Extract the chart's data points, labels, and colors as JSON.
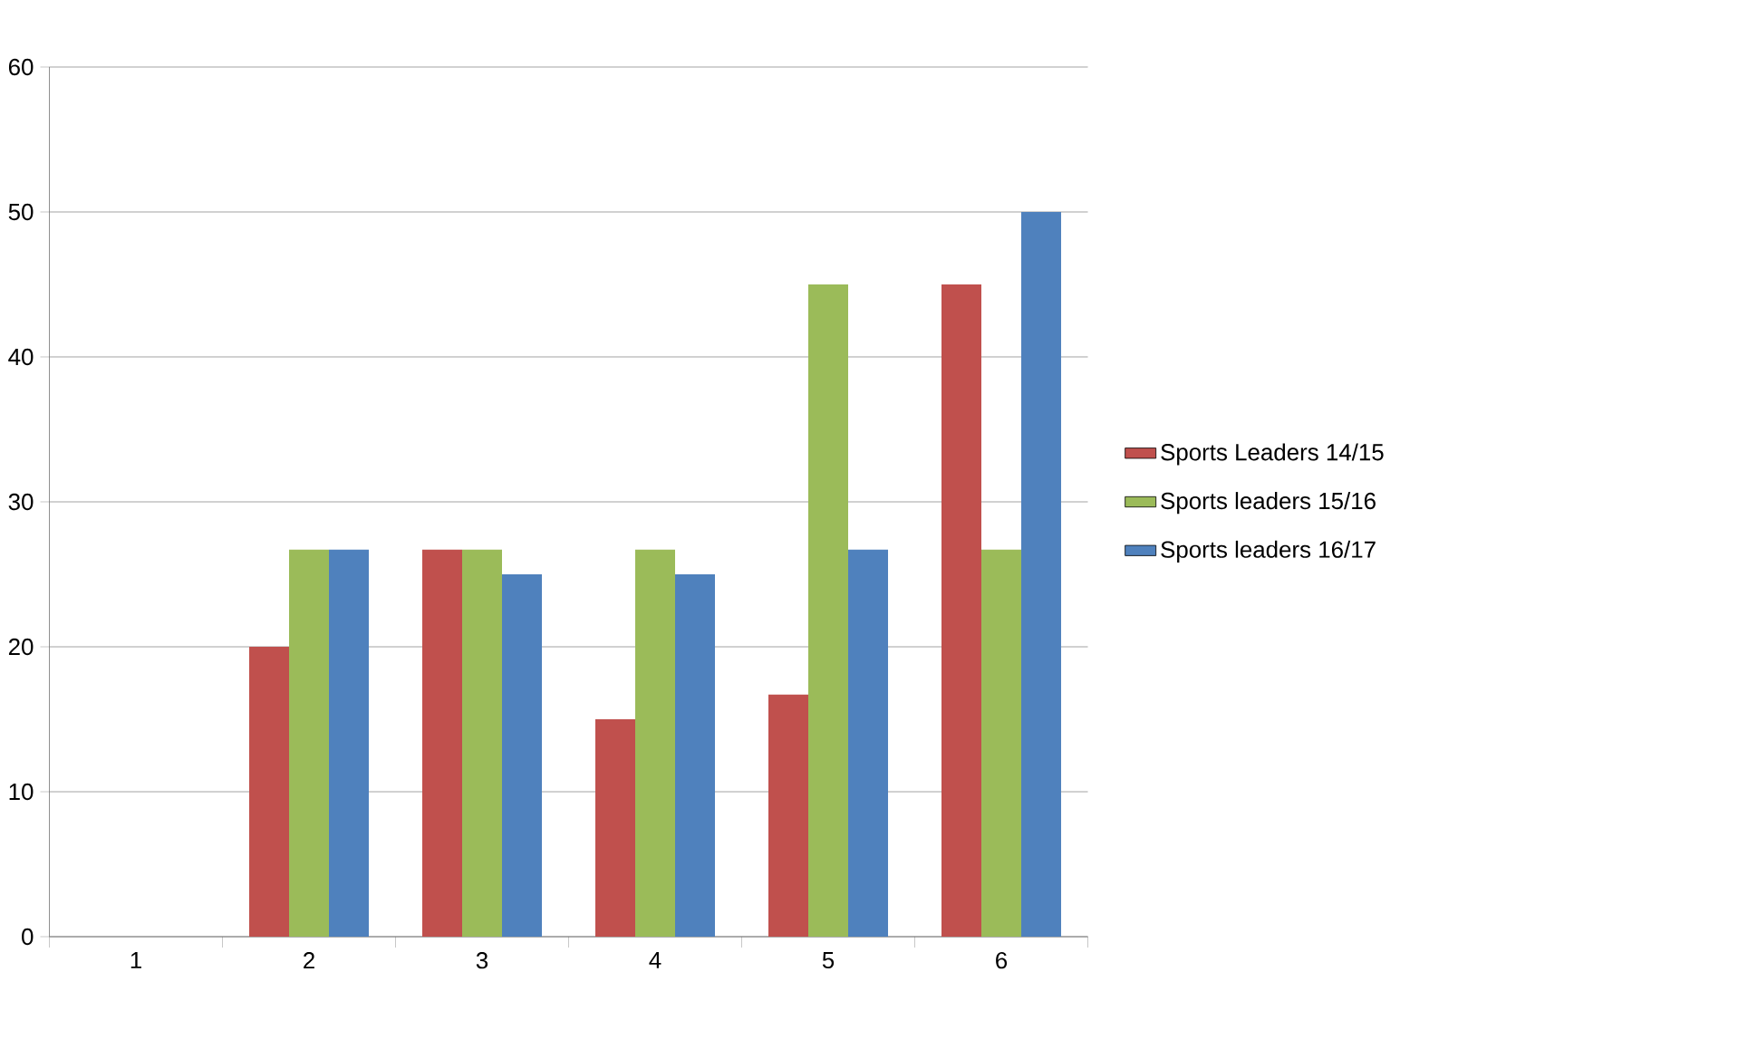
{
  "chart_data": {
    "type": "bar",
    "categories": [
      "1",
      "2",
      "3",
      "4",
      "5",
      "6"
    ],
    "series": [
      {
        "name": "Sports Leaders 14/15",
        "color": "#c0504d",
        "values": [
          0,
          20,
          26.7,
          15,
          16.7,
          45
        ]
      },
      {
        "name": "Sports leaders 15/16",
        "color": "#9bbb59",
        "values": [
          0,
          26.7,
          26.7,
          26.7,
          45,
          26.7
        ]
      },
      {
        "name": "Sports leaders 16/17",
        "color": "#4f81bd",
        "values": [
          0,
          26.7,
          25,
          25,
          26.7,
          50
        ]
      }
    ],
    "ylim": [
      0,
      60
    ],
    "yticks": [
      0,
      10,
      20,
      30,
      40,
      50,
      60
    ],
    "grid": "y",
    "legend": "right"
  }
}
